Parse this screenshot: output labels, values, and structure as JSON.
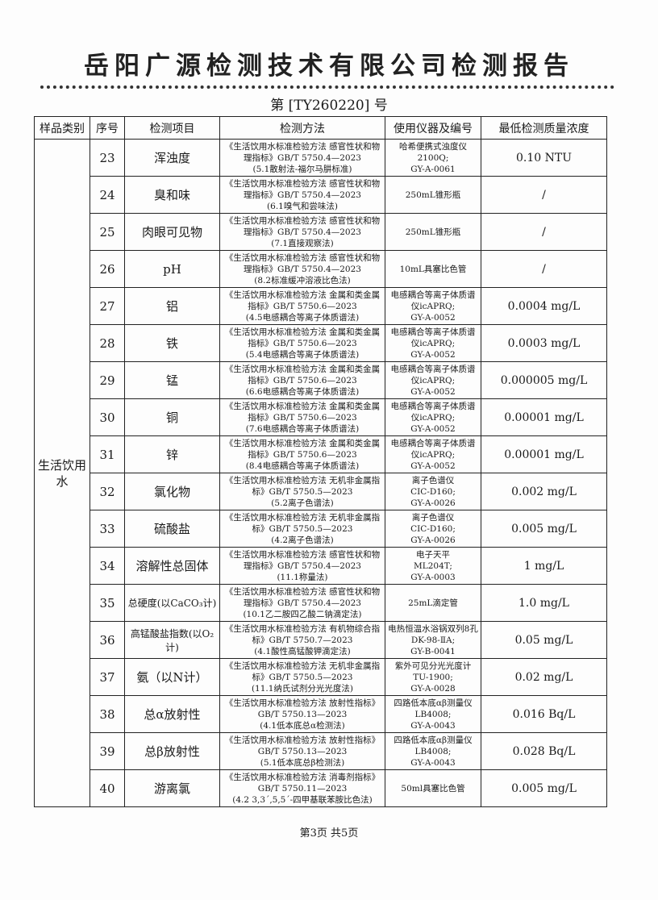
{
  "title": "岳阳广源检测技术有限公司检测报告",
  "report_no": "第 [TY260220] 号",
  "headers": [
    "样品类别",
    "序号",
    "检测项目",
    "检测方法",
    "使用仪器及编号",
    "最低检测质量浓度"
  ],
  "category": "生活饮用水",
  "rows": [
    {
      "no": "23",
      "item": "浑浊度",
      "method": [
        "《生活饮用水标准检验方法 感官性状和物",
        "理指标》GB/T 5750.4—2023",
        "(5.1散射法-福尔马肼标准)"
      ],
      "inst": [
        "哈希便携式浊度仪",
        "2100Q;",
        "GY-A-0061"
      ],
      "lim": "0.10 NTU"
    },
    {
      "no": "24",
      "item": "臭和味",
      "method": [
        "《生活饮用水标准检验方法 感官性状和物",
        "理指标》GB/T 5750.4—2023",
        "(6.1嗅气和尝味法)"
      ],
      "inst": [
        "250mL锥形瓶"
      ],
      "lim": "/"
    },
    {
      "no": "25",
      "item": "肉眼可见物",
      "method": [
        "《生活饮用水标准检验方法 感官性状和物",
        "理指标》GB/T 5750.4—2023",
        "(7.1直接观察法)"
      ],
      "inst": [
        "250mL锥形瓶"
      ],
      "lim": "/"
    },
    {
      "no": "26",
      "item": "pH",
      "method": [
        "《生活饮用水标准检验方法 感官性状和物",
        "理指标》GB/T 5750.4—2023",
        "(8.2标准缓冲溶液比色法)"
      ],
      "inst": [
        "10mL具塞比色管"
      ],
      "lim": "/"
    },
    {
      "no": "27",
      "item": "铝",
      "method": [
        "《生活饮用水标准检验方法 金属和类金属",
        "指标》GB/T 5750.6—2023",
        "(4.5电感耦合等离子体质谱法)"
      ],
      "inst": [
        "电感耦合等离子体质谱",
        "仪icAPRQ;",
        "GY-A-0052"
      ],
      "lim": "0.0004 mg/L"
    },
    {
      "no": "28",
      "item": "铁",
      "method": [
        "《生活饮用水标准检验方法 金属和类金属",
        "指标》GB/T 5750.6—2023",
        "(5.4电感耦合等离子体质谱法)"
      ],
      "inst": [
        "电感耦合等离子体质谱",
        "仪icAPRQ;",
        "GY-A-0052"
      ],
      "lim": "0.0003 mg/L"
    },
    {
      "no": "29",
      "item": "锰",
      "method": [
        "《生活饮用水标准检验方法 金属和类金属",
        "指标》GB/T 5750.6—2023",
        "(6.6电感耦合等离子体质谱法)"
      ],
      "inst": [
        "电感耦合等离子体质谱",
        "仪icAPRQ;",
        "GY-A-0052"
      ],
      "lim": "0.000005 mg/L"
    },
    {
      "no": "30",
      "item": "铜",
      "method": [
        "《生活饮用水标准检验方法 金属和类金属",
        "指标》GB/T 5750.6—2023",
        "(7.6电感耦合等离子体质谱法)"
      ],
      "inst": [
        "电感耦合等离子体质谱",
        "仪icAPRQ;",
        "GY-A-0052"
      ],
      "lim": "0.00001 mg/L"
    },
    {
      "no": "31",
      "item": "锌",
      "method": [
        "《生活饮用水标准检验方法 金属和类金属",
        "指标》GB/T 5750.6—2023",
        "(8.4电感耦合等离子体质谱法)"
      ],
      "inst": [
        "电感耦合等离子体质谱",
        "仪icAPRQ;",
        "GY-A-0052"
      ],
      "lim": "0.00001 mg/L"
    },
    {
      "no": "32",
      "item": "氯化物",
      "method": [
        "《生活饮用水标准检验方法 无机非金属指",
        "标》GB/T 5750.5—2023",
        "(5.2离子色谱法)"
      ],
      "inst": [
        "离子色谱仪",
        "CIC-D160;",
        "GY-A-0026"
      ],
      "lim": "0.002 mg/L"
    },
    {
      "no": "33",
      "item": "硫酸盐",
      "method": [
        "《生活饮用水标准检验方法 无机非金属指",
        "标》GB/T 5750.5—2023",
        "(4.2离子色谱法)"
      ],
      "inst": [
        "离子色谱仪",
        "CIC-D160;",
        "GY-A-0026"
      ],
      "lim": "0.005 mg/L"
    },
    {
      "no": "34",
      "item": "溶解性总固体",
      "method": [
        "《生活饮用水标准检验方法 感官性状和物",
        "理指标》GB/T 5750.4—2023",
        "(11.1称量法)"
      ],
      "inst": [
        "电子天平",
        "ML204T;",
        "GY-A-0003"
      ],
      "lim": "1 mg/L"
    },
    {
      "no": "35",
      "item": "总硬度(以CaCO₃计)",
      "small": true,
      "method": [
        "《生活饮用水标准检验方法 感官性状和物",
        "理指标》GB/T 5750.4—2023",
        "(10.1乙二胺四乙酸二钠滴定法)"
      ],
      "inst": [
        "25mL滴定管"
      ],
      "lim": "1.0 mg/L"
    },
    {
      "no": "36",
      "item": "高锰酸盐指数(以O₂计)",
      "small": true,
      "method": [
        "《生活饮用水标准检验方法 有机物综合指",
        "标》GB/T 5750.7—2023",
        "(4.1酸性高锰酸钾滴定法)"
      ],
      "inst": [
        "电热恒温水浴锅双列8孔",
        "DK-98-ⅡA;",
        "GY-B-0041"
      ],
      "lim": "0.05 mg/L"
    },
    {
      "no": "37",
      "item": "氨（以N计）",
      "method": [
        "《生活饮用水标准检验方法 无机非金属指",
        "标》GB/T 5750.5—2023",
        "(11.1纳氏试剂分光光度法)"
      ],
      "inst": [
        "紫外可见分光光度计",
        "TU-1900;",
        "GY-A-0028"
      ],
      "lim": "0.02 mg/L"
    },
    {
      "no": "38",
      "item": "总α放射性",
      "method": [
        "《生活饮用水标准检验方法 放射性指标》",
        "GB/T 5750.13—2023",
        "(4.1低本底总α检测法)"
      ],
      "inst": [
        "四路低本底αβ测量仪",
        "LB4008;",
        "GY-A-0043"
      ],
      "lim": "0.016 Bq/L"
    },
    {
      "no": "39",
      "item": "总β放射性",
      "method": [
        "《生活饮用水标准检验方法 放射性指标》",
        "GB/T 5750.13—2023",
        "(5.1低本底总β检测法)"
      ],
      "inst": [
        "四路低本底αβ测量仪",
        "LB4008;",
        "GY-A-0043"
      ],
      "lim": "0.028 Bq/L"
    },
    {
      "no": "40",
      "item": "游离氯",
      "method": [
        "《生活饮用水标准检验方法 消毒剂指标》",
        "GB/T 5750.11—2023",
        "(4.2 3,3´,5,5´-四甲基联苯胺比色法)"
      ],
      "inst": [
        "50ml具塞比色管"
      ],
      "lim": "0.005 mg/L"
    }
  ],
  "footer": "第3页 共5页"
}
